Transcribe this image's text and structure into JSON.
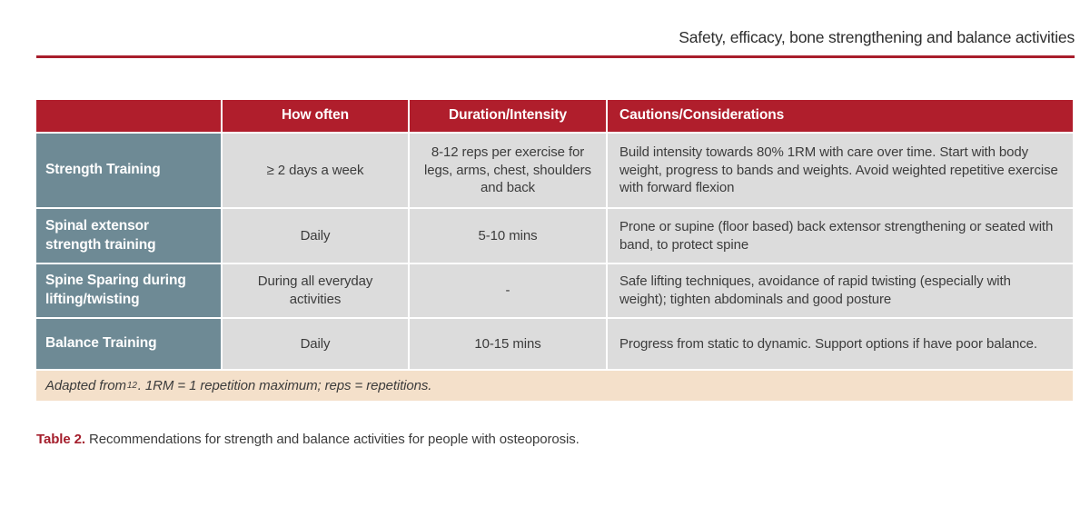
{
  "page": {
    "running_header": "Safety, efficacy, bone strengthening and balance activities"
  },
  "colors": {
    "accent_red": "#b01e2c",
    "rule_red": "#a81d2b",
    "activity_slate": "#6e8a95",
    "cell_gray": "#dcdcdc",
    "footnote_tan": "#f4e0ca",
    "caption_red": "#a41e2c"
  },
  "table": {
    "headers": [
      "",
      "How often",
      "Duration/Intensity",
      "Cautions/Considerations"
    ],
    "rows": [
      {
        "activity": "Strength Training",
        "how_often": "≥ 2 days a week",
        "duration": "8-12 reps per exercise for legs, arms, chest, shoulders and back",
        "cautions": "Build intensity towards 80% 1RM with care over time. Start with body weight, progress to bands and weights. Avoid weighted repetitive exercise with forward flexion"
      },
      {
        "activity": "Spinal extensor strength training",
        "how_often": "Daily",
        "duration": "5-10 mins",
        "cautions": "Prone or supine (floor based) back extensor strengthening or seated with band, to protect spine"
      },
      {
        "activity": "Spine Sparing during lifting/twisting",
        "how_often": "During all everyday activities",
        "duration": "-",
        "cautions": "Safe lifting techniques, avoidance of rapid twisting (especially with weight); tighten abdominals and good posture"
      },
      {
        "activity": "Balance Training",
        "how_often": "Daily",
        "duration": "10-15 mins",
        "cautions": "Progress from static to dynamic. Support options if have poor balance."
      }
    ],
    "footnote": {
      "prefix": "Adapted from ",
      "reference": "12",
      "suffix": ". 1RM = 1 repetition maximum; reps = repetitions."
    }
  },
  "caption": {
    "label": "Table 2.",
    "text": " Recommendations for strength and balance activities for people with osteoporosis."
  }
}
